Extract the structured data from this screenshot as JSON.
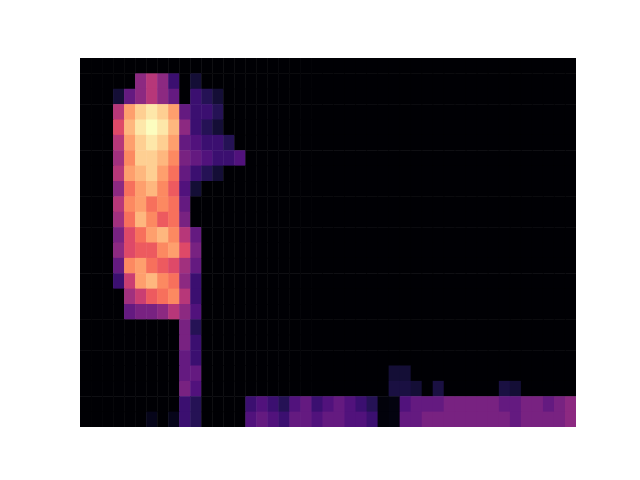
{
  "chart_data": {
    "type": "heatmap",
    "color": "magma",
    "color_range": [
      0,
      1
    ],
    "tick_labels": false,
    "cells": [
      [
        0,
        0,
        0,
        0,
        0,
        0,
        0,
        0,
        0,
        0,
        0,
        0,
        0,
        0,
        0,
        0,
        0,
        0,
        0,
        0,
        0,
        0,
        0,
        0,
        0,
        0,
        0,
        0,
        0,
        0,
        0,
        0,
        0,
        0,
        0,
        0,
        0,
        0,
        0,
        0,
        0,
        0,
        0,
        0,
        0
      ],
      [
        0,
        0,
        0,
        0,
        0,
        0.4,
        0.5,
        0.4,
        0.2,
        0,
        0.1,
        0,
        0,
        0,
        0,
        0,
        0,
        0,
        0,
        0,
        0,
        0,
        0,
        0,
        0,
        0,
        0,
        0,
        0,
        0,
        0,
        0,
        0,
        0,
        0,
        0,
        0,
        0,
        0,
        0,
        0,
        0,
        0,
        0,
        0
      ],
      [
        0,
        0,
        0,
        0.1,
        0.3,
        0.4,
        0.5,
        0.4,
        0.3,
        0,
        0.2,
        0.15,
        0.1,
        0,
        0,
        0,
        0,
        0,
        0,
        0,
        0,
        0,
        0,
        0,
        0,
        0,
        0,
        0,
        0,
        0,
        0,
        0,
        0,
        0,
        0,
        0,
        0,
        0,
        0,
        0,
        0,
        0,
        0,
        0,
        0
      ],
      [
        0,
        0,
        0,
        0.5,
        0.8,
        0.9,
        0.95,
        0.9,
        0.8,
        0.3,
        0.2,
        0.2,
        0.15,
        0,
        0,
        0,
        0,
        0,
        0,
        0,
        0,
        0,
        0,
        0,
        0,
        0,
        0,
        0,
        0,
        0,
        0,
        0,
        0,
        0,
        0,
        0,
        0,
        0,
        0,
        0,
        0,
        0,
        0,
        0,
        0
      ],
      [
        0,
        0,
        0,
        0.6,
        0.85,
        0.95,
        1,
        0.95,
        0.85,
        0.4,
        0.2,
        0.15,
        0.1,
        0,
        0,
        0,
        0,
        0,
        0,
        0,
        0,
        0,
        0,
        0,
        0,
        0,
        0,
        0,
        0,
        0,
        0,
        0,
        0,
        0,
        0,
        0,
        0,
        0,
        0,
        0,
        0,
        0,
        0,
        0,
        0
      ],
      [
        0,
        0,
        0,
        0.5,
        0.8,
        0.9,
        0.95,
        0.9,
        0.8,
        0.3,
        0.25,
        0.2,
        0.2,
        0.15,
        0,
        0,
        0,
        0,
        0,
        0,
        0,
        0,
        0,
        0,
        0,
        0,
        0,
        0,
        0,
        0,
        0,
        0,
        0,
        0,
        0,
        0,
        0,
        0,
        0,
        0,
        0,
        0,
        0,
        0,
        0
      ],
      [
        0,
        0,
        0,
        0.45,
        0.75,
        0.9,
        0.9,
        0.85,
        0.75,
        0.35,
        0.3,
        0.25,
        0.2,
        0.2,
        0.25,
        0,
        0,
        0,
        0,
        0,
        0,
        0,
        0,
        0,
        0,
        0,
        0,
        0,
        0,
        0,
        0,
        0,
        0,
        0,
        0,
        0,
        0,
        0,
        0,
        0,
        0,
        0,
        0,
        0,
        0
      ],
      [
        0,
        0,
        0,
        0.5,
        0.8,
        0.85,
        0.9,
        0.8,
        0.7,
        0.3,
        0.2,
        0.15,
        0.1,
        0,
        0,
        0,
        0,
        0,
        0,
        0,
        0,
        0,
        0,
        0,
        0,
        0,
        0,
        0,
        0,
        0,
        0,
        0,
        0,
        0,
        0,
        0,
        0,
        0,
        0,
        0,
        0,
        0,
        0,
        0,
        0
      ],
      [
        0,
        0,
        0,
        0.4,
        0.7,
        0.8,
        0.85,
        0.75,
        0.65,
        0.25,
        0.1,
        0,
        0,
        0,
        0,
        0,
        0,
        0,
        0,
        0,
        0,
        0,
        0,
        0,
        0,
        0,
        0,
        0,
        0,
        0,
        0,
        0,
        0,
        0,
        0,
        0,
        0,
        0,
        0,
        0,
        0,
        0,
        0,
        0,
        0
      ],
      [
        0,
        0,
        0,
        0.5,
        0.75,
        0.8,
        0.7,
        0.75,
        0.7,
        0.3,
        0,
        0,
        0,
        0,
        0,
        0,
        0,
        0,
        0,
        0,
        0,
        0,
        0,
        0,
        0,
        0,
        0,
        0,
        0,
        0,
        0,
        0,
        0,
        0,
        0,
        0,
        0,
        0,
        0,
        0,
        0,
        0,
        0,
        0,
        0
      ],
      [
        0,
        0,
        0,
        0.45,
        0.7,
        0.85,
        0.75,
        0.65,
        0.7,
        0.35,
        0,
        0,
        0,
        0,
        0,
        0,
        0,
        0,
        0,
        0,
        0,
        0,
        0,
        0,
        0,
        0,
        0,
        0,
        0,
        0,
        0,
        0,
        0,
        0,
        0,
        0,
        0,
        0,
        0,
        0,
        0,
        0,
        0,
        0,
        0
      ],
      [
        0,
        0,
        0,
        0.35,
        0.6,
        0.7,
        0.8,
        0.85,
        0.75,
        0.5,
        0.3,
        0,
        0,
        0,
        0,
        0,
        0,
        0,
        0,
        0,
        0,
        0,
        0,
        0,
        0,
        0,
        0,
        0,
        0,
        0,
        0,
        0,
        0,
        0,
        0,
        0,
        0,
        0,
        0,
        0,
        0,
        0,
        0,
        0,
        0
      ],
      [
        0,
        0,
        0,
        0.4,
        0.6,
        0.65,
        0.65,
        0.75,
        0.8,
        0.6,
        0.35,
        0,
        0,
        0,
        0,
        0,
        0,
        0,
        0,
        0,
        0,
        0,
        0,
        0,
        0,
        0,
        0,
        0,
        0,
        0,
        0,
        0,
        0,
        0,
        0,
        0,
        0,
        0,
        0,
        0,
        0,
        0,
        0,
        0,
        0
      ],
      [
        0,
        0,
        0,
        0.3,
        0.75,
        0.8,
        0.7,
        0.65,
        0.6,
        0.45,
        0.3,
        0,
        0,
        0,
        0,
        0,
        0,
        0,
        0,
        0,
        0,
        0,
        0,
        0,
        0,
        0,
        0,
        0,
        0,
        0,
        0,
        0,
        0,
        0,
        0,
        0,
        0,
        0,
        0,
        0,
        0,
        0,
        0,
        0,
        0
      ],
      [
        0,
        0,
        0,
        0.2,
        0.55,
        0.8,
        0.85,
        0.75,
        0.7,
        0.4,
        0.2,
        0,
        0,
        0,
        0,
        0,
        0,
        0,
        0,
        0,
        0,
        0,
        0,
        0,
        0,
        0,
        0,
        0,
        0,
        0,
        0,
        0,
        0,
        0,
        0,
        0,
        0,
        0,
        0,
        0,
        0,
        0,
        0,
        0,
        0
      ],
      [
        0,
        0,
        0,
        0,
        0.45,
        0.55,
        0.65,
        0.7,
        0.75,
        0.5,
        0.2,
        0,
        0,
        0,
        0,
        0,
        0,
        0,
        0,
        0,
        0,
        0,
        0,
        0,
        0,
        0,
        0,
        0,
        0,
        0,
        0,
        0,
        0,
        0,
        0,
        0,
        0,
        0,
        0,
        0,
        0,
        0,
        0,
        0,
        0
      ],
      [
        0,
        0,
        0,
        0,
        0.3,
        0.35,
        0.35,
        0.4,
        0.5,
        0.4,
        0.25,
        0,
        0,
        0,
        0,
        0,
        0,
        0,
        0,
        0,
        0,
        0,
        0,
        0,
        0,
        0,
        0,
        0,
        0,
        0,
        0,
        0,
        0,
        0,
        0,
        0,
        0,
        0,
        0,
        0,
        0,
        0,
        0,
        0,
        0
      ],
      [
        0,
        0,
        0,
        0,
        0,
        0,
        0,
        0,
        0,
        0.35,
        0.15,
        0,
        0,
        0,
        0,
        0,
        0,
        0,
        0,
        0,
        0,
        0,
        0,
        0,
        0,
        0,
        0,
        0,
        0,
        0,
        0,
        0,
        0,
        0,
        0,
        0,
        0,
        0,
        0,
        0,
        0,
        0,
        0,
        0,
        0
      ],
      [
        0,
        0,
        0,
        0,
        0,
        0,
        0,
        0,
        0,
        0.35,
        0.2,
        0,
        0,
        0,
        0,
        0,
        0,
        0,
        0,
        0,
        0,
        0,
        0,
        0,
        0,
        0,
        0,
        0,
        0,
        0,
        0,
        0,
        0,
        0,
        0,
        0,
        0,
        0,
        0,
        0,
        0,
        0,
        0,
        0,
        0
      ],
      [
        0,
        0,
        0,
        0,
        0,
        0,
        0,
        0,
        0,
        0.3,
        0.2,
        0,
        0,
        0,
        0,
        0,
        0,
        0,
        0,
        0,
        0,
        0,
        0,
        0,
        0,
        0,
        0,
        0,
        0,
        0,
        0,
        0,
        0,
        0,
        0,
        0,
        0,
        0,
        0,
        0,
        0,
        0,
        0,
        0,
        0
      ],
      [
        0,
        0,
        0,
        0,
        0,
        0,
        0,
        0,
        0,
        0.3,
        0.3,
        0,
        0,
        0,
        0,
        0,
        0,
        0,
        0,
        0,
        0,
        0,
        0,
        0,
        0,
        0,
        0,
        0,
        0.1,
        0.1,
        0,
        0,
        0,
        0,
        0,
        0,
        0,
        0,
        0,
        0,
        0,
        0,
        0,
        0,
        0
      ],
      [
        0,
        0,
        0,
        0,
        0,
        0,
        0,
        0,
        0,
        0.35,
        0.25,
        0,
        0,
        0,
        0,
        0,
        0,
        0,
        0,
        0,
        0,
        0,
        0,
        0,
        0,
        0,
        0,
        0,
        0.12,
        0.12,
        0.1,
        0,
        0.12,
        0,
        0,
        0,
        0,
        0,
        0.12,
        0.1,
        0,
        0,
        0,
        0,
        0
      ],
      [
        0,
        0,
        0,
        0,
        0,
        0,
        0,
        0,
        0,
        0.2,
        0.15,
        0,
        0,
        0,
        0,
        0.2,
        0.25,
        0.2,
        0.15,
        0.25,
        0.3,
        0.2,
        0.25,
        0.3,
        0.25,
        0.2,
        0.15,
        0.02,
        0.03,
        0.25,
        0.3,
        0.3,
        0.3,
        0.35,
        0.35,
        0.35,
        0.35,
        0.35,
        0.3,
        0.3,
        0.35,
        0.35,
        0.3,
        0.35,
        0.4
      ],
      [
        0,
        0,
        0,
        0,
        0,
        0,
        0.05,
        0,
        0.05,
        0.2,
        0.15,
        0,
        0,
        0,
        0,
        0.25,
        0.3,
        0.25,
        0.2,
        0.3,
        0.3,
        0.25,
        0.3,
        0.3,
        0.25,
        0.25,
        0.2,
        0.02,
        0.03,
        0.3,
        0.3,
        0.35,
        0.35,
        0.35,
        0.35,
        0.35,
        0.35,
        0.35,
        0.35,
        0.3,
        0.35,
        0.35,
        0.35,
        0.35,
        0.4
      ]
    ]
  }
}
